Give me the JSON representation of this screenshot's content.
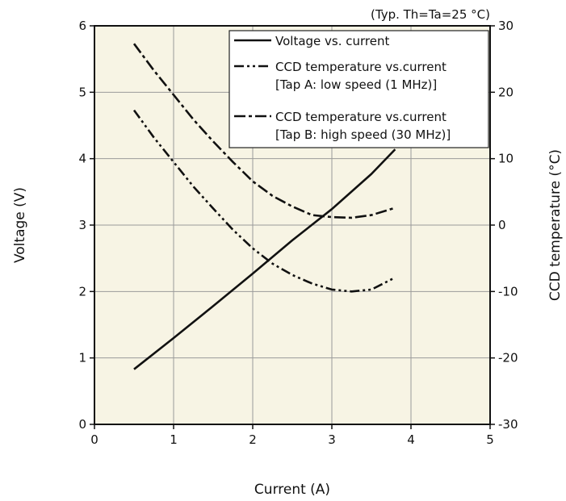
{
  "chart_data": {
    "type": "line",
    "note": "(Typ. Th=Ta=25 °C)",
    "xlabel": "Current (A)",
    "ylabel": "Voltage (V)",
    "y2label": "CCD temperature (°C)",
    "xlim": [
      0,
      5
    ],
    "ylim": [
      0,
      6
    ],
    "y2lim": [
      -30,
      30
    ],
    "xticks": [
      "0",
      "1",
      "2",
      "3",
      "4",
      "5"
    ],
    "yticks": [
      "0",
      "1",
      "2",
      "3",
      "4",
      "5",
      "6"
    ],
    "y2ticks": [
      "-30",
      "-20",
      "-10",
      "0",
      "10",
      "20",
      "30"
    ],
    "grid": true,
    "legend_position": "top-right",
    "series": [
      {
        "name": "Voltage vs. current",
        "style": "solid",
        "axis": "left",
        "x": [
          0.5,
          1.0,
          1.5,
          2.0,
          2.5,
          3.0,
          3.5,
          3.8
        ],
        "y": [
          0.83,
          1.3,
          1.78,
          2.27,
          2.77,
          3.24,
          3.77,
          4.14
        ]
      },
      {
        "name": "CCD temperature vs.current",
        "name2": "[Tap A: low speed (1 MHz)]",
        "style": "dash-dot-dot",
        "axis": "right",
        "x": [
          0.5,
          0.75,
          1.0,
          1.25,
          1.5,
          1.75,
          2.0,
          2.25,
          2.5,
          2.75,
          3.0,
          3.25,
          3.5,
          3.8
        ],
        "y": [
          17.3,
          13.2,
          9.5,
          5.8,
          2.5,
          -0.7,
          -3.5,
          -5.8,
          -7.5,
          -8.8,
          -9.7,
          -10.0,
          -9.7,
          -7.9
        ]
      },
      {
        "name": "CCD temperature vs.current",
        "name2": "[Tap B: high speed (30 MHz)]",
        "style": "dash",
        "axis": "right",
        "x": [
          0.5,
          0.75,
          1.0,
          1.25,
          1.5,
          1.75,
          2.0,
          2.25,
          2.5,
          2.75,
          3.0,
          3.25,
          3.5,
          3.8
        ],
        "y": [
          27.3,
          23.3,
          19.6,
          15.9,
          12.6,
          9.5,
          6.6,
          4.4,
          2.8,
          1.5,
          1.2,
          1.1,
          1.5,
          2.6
        ]
      }
    ]
  }
}
